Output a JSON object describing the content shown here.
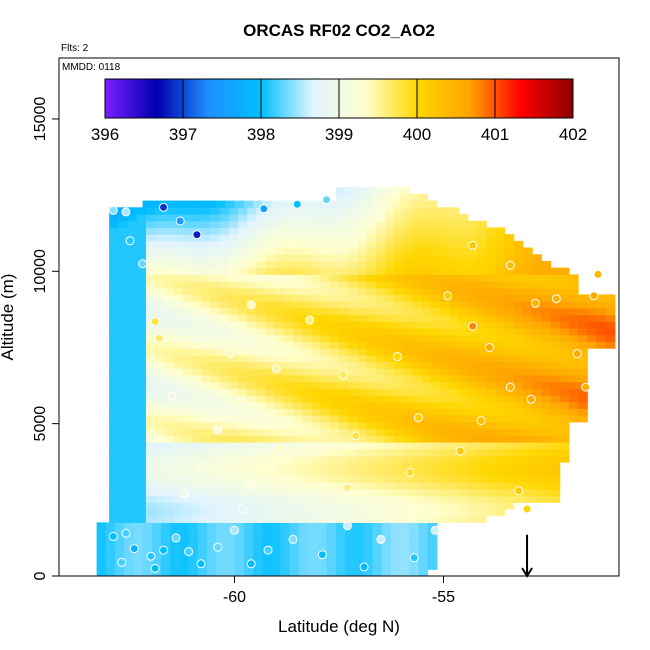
{
  "chart_data": {
    "type": "heatmap",
    "title": "ORCAS RF02 CO2_AO2",
    "xlabel": "Latitude (deg N)",
    "ylabel": "Altitude (m)",
    "notes": [
      "Flts: 2",
      "MMDD: 0118"
    ],
    "xlim": [
      -64.2,
      -50.8
    ],
    "ylim": [
      0,
      17000
    ],
    "x_ticks": [
      -60,
      -55
    ],
    "y_ticks": [
      0,
      5000,
      10000,
      15000
    ],
    "colorbar": {
      "min": 396,
      "max": 402,
      "ticks": [
        396,
        397,
        398,
        399,
        400,
        401,
        402
      ],
      "colors": [
        "#7a1fff",
        "#0000b0",
        "#1e90ff",
        "#00bfff",
        "#e0f4ff",
        "#ffffd0",
        "#ffd700",
        "#ffa500",
        "#ff0000",
        "#8b0000"
      ]
    },
    "grid": false,
    "observations": [
      {
        "x": -62.9,
        "y": 12000,
        "value": 398.4
      },
      {
        "x": -62.6,
        "y": 11950,
        "value": 398.5
      },
      {
        "x": -61.7,
        "y": 12100,
        "value": 396.9
      },
      {
        "x": -61.3,
        "y": 11650,
        "value": 397.4
      },
      {
        "x": -60.9,
        "y": 11200,
        "value": 396.8
      },
      {
        "x": -59.3,
        "y": 12050,
        "value": 397.6
      },
      {
        "x": -58.5,
        "y": 12200,
        "value": 398.0
      },
      {
        "x": -57.8,
        "y": 12350,
        "value": 398.3
      },
      {
        "x": -56.6,
        "y": 11800,
        "value": 399.3
      },
      {
        "x": -54.3,
        "y": 10850,
        "value": 400.2
      },
      {
        "x": -53.4,
        "y": 10200,
        "value": 400.3
      },
      {
        "x": -52.3,
        "y": 9100,
        "value": 400.5
      },
      {
        "x": -51.4,
        "y": 9200,
        "value": 400.6
      },
      {
        "x": -51.3,
        "y": 9900,
        "value": 400.4
      },
      {
        "x": -52.8,
        "y": 8950,
        "value": 400.5
      },
      {
        "x": -54.9,
        "y": 9200,
        "value": 400.2
      },
      {
        "x": -62.5,
        "y": 11000,
        "value": 398.1
      },
      {
        "x": -62.2,
        "y": 10250,
        "value": 398.3
      },
      {
        "x": -61.9,
        "y": 8350,
        "value": 399.8
      },
      {
        "x": -61.8,
        "y": 7800,
        "value": 399.7
      },
      {
        "x": -59.6,
        "y": 8900,
        "value": 399.4
      },
      {
        "x": -58.2,
        "y": 8400,
        "value": 399.6
      },
      {
        "x": -60.1,
        "y": 7300,
        "value": 399.4
      },
      {
        "x": -59.0,
        "y": 6800,
        "value": 399.5
      },
      {
        "x": -57.4,
        "y": 6600,
        "value": 399.7
      },
      {
        "x": -56.1,
        "y": 7200,
        "value": 400.0
      },
      {
        "x": -54.3,
        "y": 8200,
        "value": 400.8
      },
      {
        "x": -53.9,
        "y": 7500,
        "value": 400.6
      },
      {
        "x": -53.4,
        "y": 6200,
        "value": 400.5
      },
      {
        "x": -52.9,
        "y": 5800,
        "value": 400.6
      },
      {
        "x": -51.8,
        "y": 7300,
        "value": 400.6
      },
      {
        "x": -51.6,
        "y": 6200,
        "value": 400.5
      },
      {
        "x": -54.1,
        "y": 5100,
        "value": 400.3
      },
      {
        "x": -55.6,
        "y": 5200,
        "value": 400.1
      },
      {
        "x": -57.1,
        "y": 4600,
        "value": 399.8
      },
      {
        "x": -58.9,
        "y": 4200,
        "value": 399.4
      },
      {
        "x": -60.4,
        "y": 4800,
        "value": 399.2
      },
      {
        "x": -61.5,
        "y": 5900,
        "value": 399.1
      },
      {
        "x": -60.8,
        "y": 3600,
        "value": 399.2
      },
      {
        "x": -59.6,
        "y": 3000,
        "value": 399.3
      },
      {
        "x": -57.3,
        "y": 2900,
        "value": 399.6
      },
      {
        "x": -55.8,
        "y": 3400,
        "value": 399.9
      },
      {
        "x": -54.6,
        "y": 4100,
        "value": 400.2
      },
      {
        "x": -53.2,
        "y": 2800,
        "value": 400.2
      },
      {
        "x": -53.0,
        "y": 2200,
        "value": 400.0
      },
      {
        "x": -61.2,
        "y": 2700,
        "value": 399.0
      },
      {
        "x": -62.9,
        "y": 1300,
        "value": 398.0
      },
      {
        "x": -62.6,
        "y": 1400,
        "value": 398.2
      },
      {
        "x": -62.4,
        "y": 900,
        "value": 397.8
      },
      {
        "x": -62.0,
        "y": 650,
        "value": 398.1
      },
      {
        "x": -61.7,
        "y": 850,
        "value": 398.0
      },
      {
        "x": -61.4,
        "y": 1250,
        "value": 398.3
      },
      {
        "x": -61.1,
        "y": 800,
        "value": 398.2
      },
      {
        "x": -60.8,
        "y": 400,
        "value": 398.0
      },
      {
        "x": -60.4,
        "y": 950,
        "value": 398.3
      },
      {
        "x": -60.0,
        "y": 1500,
        "value": 398.5
      },
      {
        "x": -59.6,
        "y": 400,
        "value": 397.9
      },
      {
        "x": -59.2,
        "y": 850,
        "value": 398.2
      },
      {
        "x": -58.6,
        "y": 1200,
        "value": 398.4
      },
      {
        "x": -57.9,
        "y": 700,
        "value": 398.0
      },
      {
        "x": -57.3,
        "y": 1650,
        "value": 398.6
      },
      {
        "x": -56.5,
        "y": 1200,
        "value": 398.6
      },
      {
        "x": -55.7,
        "y": 600,
        "value": 398.1
      },
      {
        "x": -55.2,
        "y": 1500,
        "value": 398.6
      },
      {
        "x": -56.9,
        "y": 300,
        "value": 397.9
      },
      {
        "x": -61.9,
        "y": 250,
        "value": 398.0
      },
      {
        "x": -62.7,
        "y": 450,
        "value": 398.2
      },
      {
        "x": -59.8,
        "y": 2200,
        "value": 398.8
      }
    ],
    "annotation_arrow": {
      "x": -53.0,
      "y_from": 700,
      "y_to": 0
    }
  }
}
